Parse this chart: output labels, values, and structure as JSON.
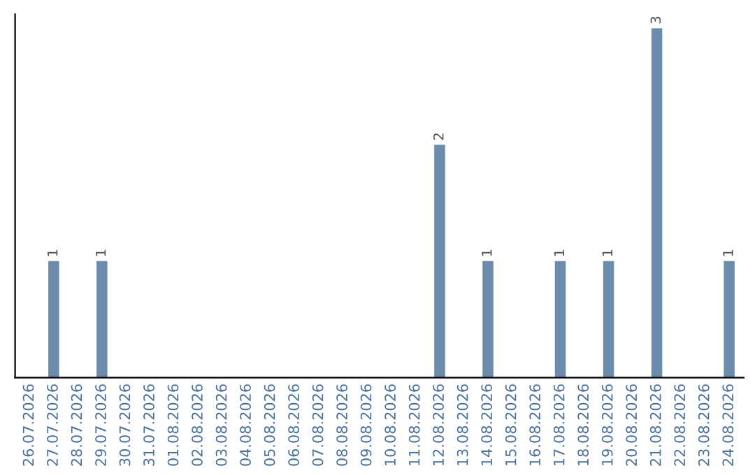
{
  "chart_data": {
    "type": "bar",
    "categories": [
      "26.07.2026",
      "27.07.2026",
      "28.07.2026",
      "29.07.2026",
      "30.07.2026",
      "31.07.2026",
      "01.08.2026",
      "02.08.2026",
      "03.08.2026",
      "04.08.2026",
      "05.08.2026",
      "06.08.2026",
      "07.08.2026",
      "08.08.2026",
      "09.08.2026",
      "10.08.2026",
      "11.08.2026",
      "12.08.2026",
      "13.08.2026",
      "14.08.2026",
      "15.08.2026",
      "16.08.2026",
      "17.08.2026",
      "18.08.2026",
      "19.08.2026",
      "20.08.2026",
      "21.08.2026",
      "22.08.2026",
      "23.08.2026",
      "24.08.2026"
    ],
    "values": [
      0,
      1,
      0,
      1,
      0,
      0,
      0,
      0,
      0,
      0,
      0,
      0,
      0,
      0,
      0,
      0,
      0,
      2,
      0,
      1,
      0,
      0,
      1,
      0,
      1,
      0,
      3,
      0,
      0,
      1
    ],
    "value_labels": [
      null,
      "1",
      null,
      "1",
      null,
      null,
      null,
      null,
      null,
      null,
      null,
      null,
      null,
      null,
      null,
      null,
      null,
      "2",
      null,
      "1",
      null,
      null,
      "1",
      null,
      "1",
      null,
      "3",
      null,
      null,
      "1"
    ],
    "color": "#6b8cac",
    "tick_labels": "x",
    "grid": false,
    "legend": false
  }
}
